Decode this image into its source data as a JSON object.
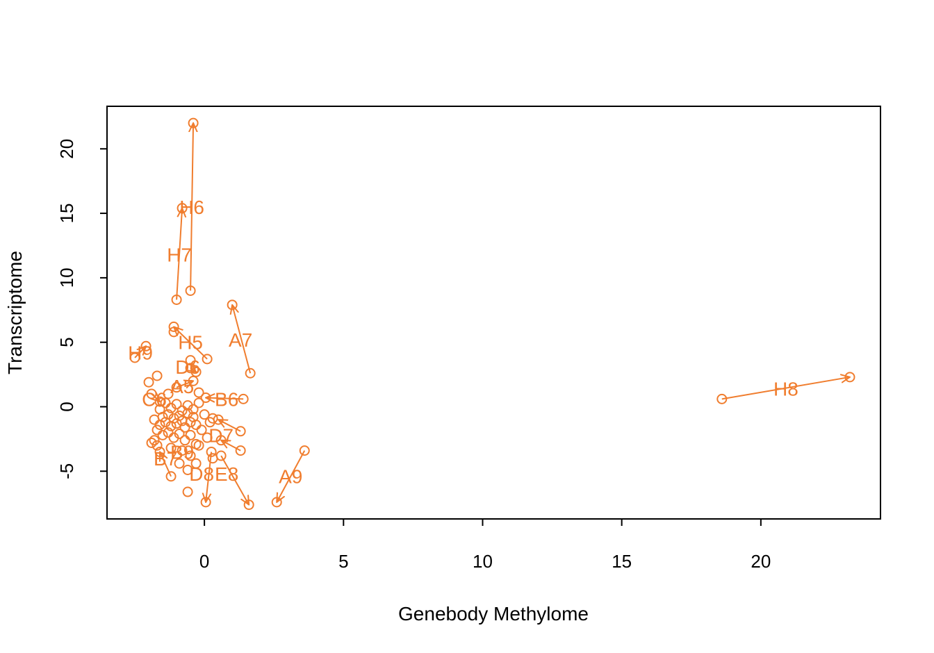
{
  "chart_data": {
    "type": "scatter",
    "title": "",
    "xlabel": "Genebody Methylome",
    "ylabel": "Transcriptome",
    "xlim": [
      -3.5,
      24.3
    ],
    "ylim": [
      -8.7,
      23.3
    ],
    "x_ticks": [
      0,
      5,
      10,
      15,
      20
    ],
    "y_ticks": [
      -5,
      0,
      5,
      10,
      15,
      20
    ],
    "x_tick_labels": [
      "0",
      "5",
      "10",
      "15",
      "20"
    ],
    "y_tick_labels": [
      "-5",
      "0",
      "5",
      "10",
      "15",
      "20"
    ],
    "grid": false,
    "legend": "none",
    "color": "#F07D2E",
    "labeled_points": [
      {
        "label": "H8",
        "from": [
          18.6,
          0.6
        ],
        "to": [
          23.2,
          2.3
        ],
        "label_pos": [
          20.9,
          1.4
        ]
      },
      {
        "label": "H6",
        "from": [
          -0.5,
          9.0
        ],
        "to": [
          -0.4,
          22.0
        ],
        "label_pos": [
          -0.45,
          15.5
        ]
      },
      {
        "label": "H7",
        "from": [
          -1.0,
          8.3
        ],
        "to": [
          -0.8,
          15.4
        ],
        "label_pos": [
          -0.9,
          11.8
        ]
      },
      {
        "label": "A7",
        "from": [
          1.65,
          2.6
        ],
        "to": [
          1.0,
          7.9
        ],
        "label_pos": [
          1.3,
          5.2
        ]
      },
      {
        "label": "H5",
        "from": [
          0.1,
          3.7
        ],
        "to": [
          -1.1,
          6.2
        ],
        "label_pos": [
          -0.5,
          5.0
        ]
      },
      {
        "label": "H9",
        "from": [
          -2.5,
          3.8
        ],
        "to": [
          -2.1,
          4.7
        ],
        "label_pos": [
          -2.3,
          4.2
        ]
      },
      {
        "label": "A9",
        "from": [
          3.6,
          -3.4
        ],
        "to": [
          2.6,
          -7.4
        ],
        "label_pos": [
          3.1,
          -5.4
        ]
      },
      {
        "label": "E8",
        "from": [
          0.6,
          -3.8
        ],
        "to": [
          1.6,
          -7.6
        ],
        "label_pos": [
          0.8,
          -5.2
        ]
      },
      {
        "label": "D8",
        "from": [
          0.25,
          -3.5
        ],
        "to": [
          0.05,
          -7.4
        ],
        "label_pos": [
          -0.1,
          -5.2
        ]
      },
      {
        "label": "B6",
        "from": [
          1.4,
          0.6
        ],
        "to": [
          0.05,
          0.7
        ],
        "label_pos": [
          0.8,
          0.6
        ]
      },
      {
        "label": "D7",
        "from": [
          1.3,
          -1.9
        ],
        "to": [
          0.5,
          -1.0
        ],
        "label_pos": [
          0.6,
          -2.2
        ]
      },
      {
        "label": "B7",
        "from": [
          -1.2,
          -5.4
        ],
        "to": [
          -1.6,
          -3.5
        ],
        "label_pos": [
          -1.4,
          -4.0
        ]
      },
      {
        "label": "B9",
        "from": [
          1.3,
          -3.4
        ],
        "to": [
          0.6,
          -2.6
        ],
        "label_pos": [
          -0.8,
          -3.5
        ]
      },
      {
        "label": "A5",
        "from": [
          -1.0,
          1.5
        ],
        "to": [
          -0.4,
          2.0
        ],
        "label_pos": [
          -0.8,
          1.6
        ]
      },
      {
        "label": "C6",
        "from": [
          -1.9,
          1.0
        ],
        "to": [
          -1.6,
          0.4
        ],
        "label_pos": [
          -1.8,
          0.6
        ]
      },
      {
        "label": "D6",
        "from": [
          -0.5,
          3.0
        ],
        "to": [
          -0.3,
          2.7
        ],
        "label_pos": [
          -0.6,
          3.1
        ]
      }
    ],
    "unlabeled_points": [
      [
        -1.8,
        -1.0
      ],
      [
        -1.6,
        -1.4
      ],
      [
        -1.5,
        -0.8
      ],
      [
        -1.4,
        -1.2
      ],
      [
        -1.3,
        -0.6
      ],
      [
        -1.2,
        -1.5
      ],
      [
        -1.1,
        -0.9
      ],
      [
        -1.0,
        -1.3
      ],
      [
        -0.9,
        -0.7
      ],
      [
        -0.8,
        -1.1
      ],
      [
        -0.7,
        -1.6
      ],
      [
        -0.6,
        -0.5
      ],
      [
        -0.5,
        -1.2
      ],
      [
        -0.4,
        -0.8
      ],
      [
        -0.3,
        -1.4
      ],
      [
        -1.7,
        -1.8
      ],
      [
        -1.5,
        -2.2
      ],
      [
        -1.3,
        -2.0
      ],
      [
        -1.1,
        -2.4
      ],
      [
        -0.9,
        -2.1
      ],
      [
        -0.7,
        -2.6
      ],
      [
        -0.5,
        -2.2
      ],
      [
        -0.3,
        -2.9
      ],
      [
        -1.6,
        -0.2
      ],
      [
        -1.4,
        0.3
      ],
      [
        -1.2,
        -0.1
      ],
      [
        -1.0,
        0.2
      ],
      [
        -0.8,
        -0.3
      ],
      [
        -0.6,
        0.1
      ],
      [
        -0.4,
        -0.2
      ],
      [
        -1.9,
        -2.8
      ],
      [
        -1.7,
        -3.0
      ],
      [
        -1.2,
        -3.2
      ],
      [
        -0.8,
        -3.4
      ],
      [
        -0.5,
        -3.8
      ],
      [
        -0.2,
        -3.0
      ],
      [
        -0.1,
        -1.8
      ],
      [
        0.1,
        -2.4
      ],
      [
        0.2,
        -1.2
      ],
      [
        -0.2,
        0.3
      ],
      [
        -2.0,
        1.9
      ],
      [
        -1.7,
        2.4
      ],
      [
        -1.1,
        5.8
      ],
      [
        -0.5,
        3.6
      ],
      [
        0.0,
        -0.6
      ],
      [
        -1.8,
        -2.6
      ],
      [
        -0.6,
        -6.6
      ],
      [
        -0.6,
        -4.9
      ],
      [
        -0.9,
        -4.4
      ],
      [
        0.3,
        -4.0
      ],
      [
        -1.3,
        1.0
      ],
      [
        -0.2,
        1.1
      ],
      [
        0.3,
        -0.9
      ],
      [
        -0.3,
        -4.4
      ]
    ]
  }
}
